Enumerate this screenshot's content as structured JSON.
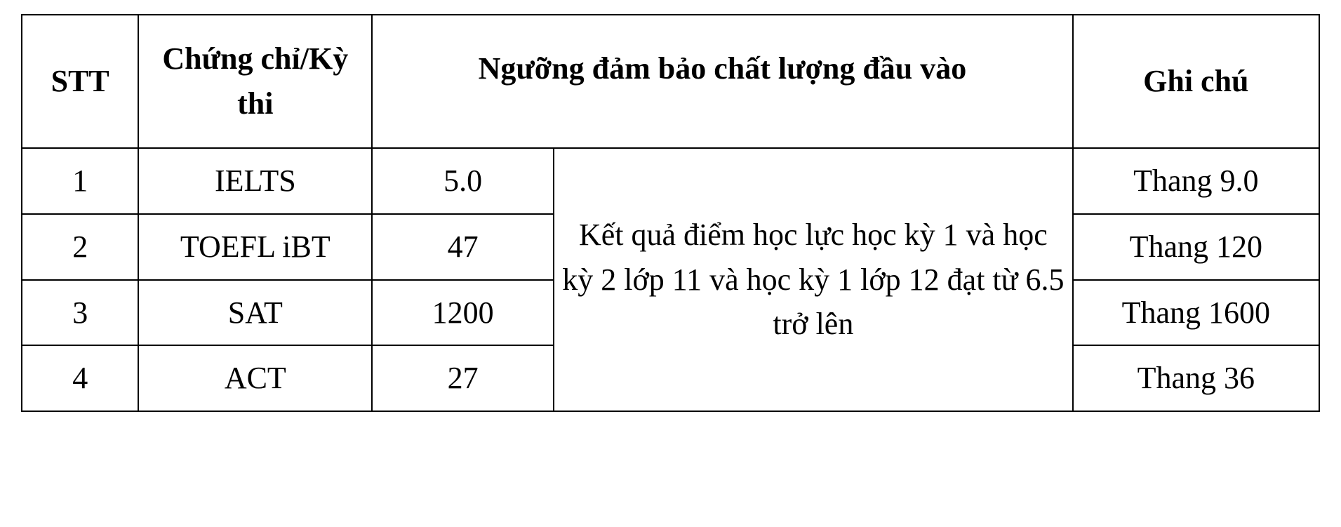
{
  "table": {
    "headers": {
      "stt": "STT",
      "cert": "Chứng chỉ/Kỳ thi",
      "threshold": "Ngưỡng đảm bảo chất lượng đầu vào",
      "note": "Ghi chú"
    },
    "shared_requirement": "Kết quả điểm học lực học kỳ 1 và học kỳ 2 lớp 11 và học kỳ 1 lớp 12 đạt từ 6.5 trở lên",
    "rows": [
      {
        "stt": "1",
        "cert": "IELTS",
        "score": "5.0",
        "note": "Thang 9.0"
      },
      {
        "stt": "2",
        "cert": "TOEFL iBT",
        "score": "47",
        "note": "Thang 120"
      },
      {
        "stt": "3",
        "cert": "SAT",
        "score": "1200",
        "note": "Thang 1600"
      },
      {
        "stt": "4",
        "cert": "ACT",
        "score": "27",
        "note": "Thang 36"
      }
    ],
    "colors": {
      "border": "#000000",
      "text": "#000000",
      "background": "#ffffff"
    },
    "font": {
      "family": "Times New Roman",
      "size_pt": 33,
      "header_weight": "700",
      "body_weight": "400"
    }
  }
}
